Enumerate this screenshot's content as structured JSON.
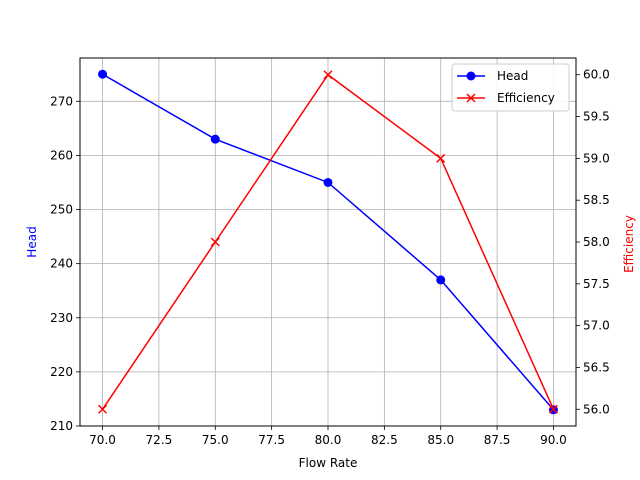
{
  "chart_data": {
    "type": "line",
    "title": "",
    "xlabel": "Flow Rate",
    "x": [
      70,
      75,
      80,
      85,
      90
    ],
    "xlim": [
      69,
      91
    ],
    "xticks": [
      "70.0",
      "72.5",
      "75.0",
      "77.5",
      "80.0",
      "82.5",
      "85.0",
      "87.5",
      "90.0"
    ],
    "grid": true,
    "legend_placement": "top-right",
    "series": [
      {
        "name": "Head",
        "axis": "left",
        "ylabel": "Head",
        "values": [
          275,
          263,
          255,
          237,
          213
        ],
        "color": "#0000ff",
        "marker": "circle",
        "ylim": [
          210,
          278
        ],
        "yticks": [
          "210",
          "220",
          "230",
          "240",
          "250",
          "260",
          "270"
        ]
      },
      {
        "name": "Efficiency",
        "axis": "right",
        "ylabel": "Efficiency",
        "values": [
          56.0,
          58.0,
          60.0,
          59.0,
          56.0
        ],
        "color": "#ff0000",
        "marker": "x",
        "ylim": [
          55.8,
          60.2
        ],
        "yticks": [
          "56.0",
          "56.5",
          "57.0",
          "57.5",
          "58.0",
          "58.5",
          "59.0",
          "59.5",
          "60.0"
        ]
      }
    ]
  }
}
